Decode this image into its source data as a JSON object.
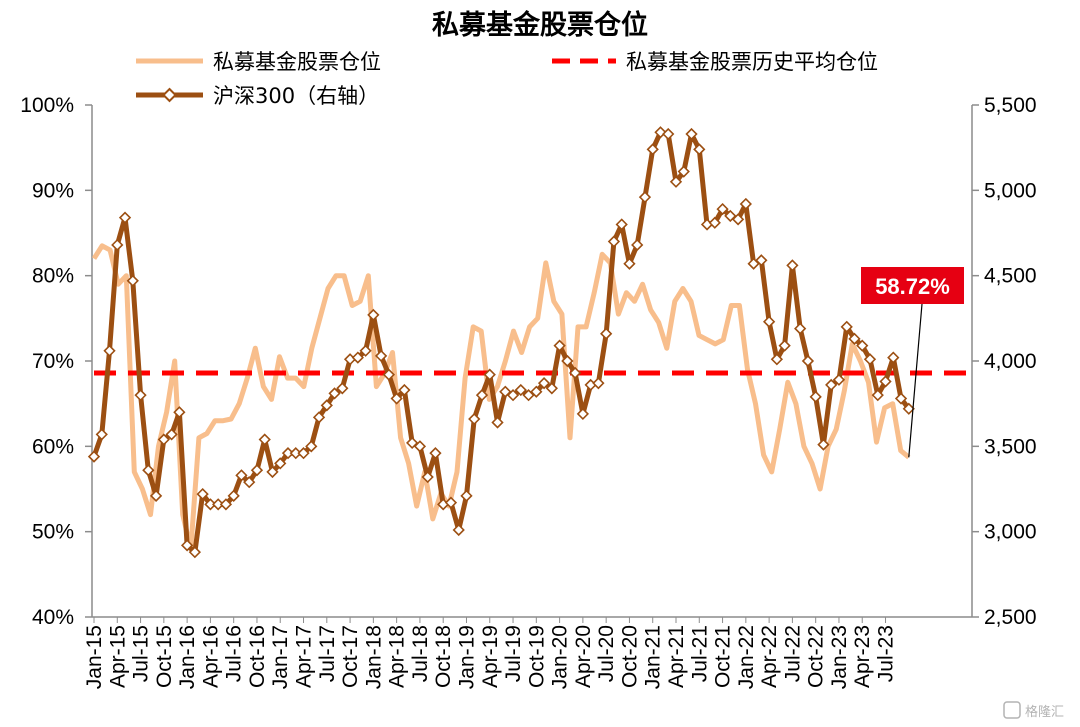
{
  "chart_data": {
    "type": "line",
    "title": "私募基金股票仓位",
    "legend": {
      "placement": "top",
      "items": [
        "私募基金股票仓位",
        "私募基金股票历史平均仓位",
        "沪深300（右轴）"
      ]
    },
    "x_tick_labels": [
      "Jan-15",
      "Apr-15",
      "Jul-15",
      "Oct-15",
      "Jan-16",
      "Apr-16",
      "Jul-16",
      "Oct-16",
      "Jan-17",
      "Apr-17",
      "Jul-17",
      "Oct-17",
      "Jan-18",
      "Apr-18",
      "Jul-18",
      "Oct-18",
      "Jan-19",
      "Apr-19",
      "Jul-19",
      "Oct-19",
      "Jan-20",
      "Apr-20",
      "Jul-20",
      "Oct-20",
      "Jan-21",
      "Apr-21",
      "Jul-21",
      "Oct-21",
      "Jan-22",
      "Apr-22",
      "Jul-22",
      "Oct-22",
      "Jan-23",
      "Apr-23",
      "Jul-23"
    ],
    "y_left": {
      "ticks": [
        "40%",
        "50%",
        "60%",
        "70%",
        "80%",
        "90%",
        "100%"
      ],
      "range": [
        40,
        100
      ],
      "unit": "%"
    },
    "y_right": {
      "ticks": [
        "2,500",
        "3,000",
        "3,500",
        "4,000",
        "4,500",
        "5,000",
        "5,500"
      ],
      "range": [
        2500,
        5500
      ]
    },
    "series": [
      {
        "name": "私募基金股票仓位",
        "axis": "left",
        "color": "#F8BE8C",
        "style": "solid",
        "values": [
          82,
          83.5,
          83,
          79,
          80,
          57,
          55,
          52,
          60,
          64,
          70,
          52,
          48,
          61,
          61.5,
          63,
          63,
          63.2,
          65,
          68,
          71.5,
          67,
          65.5,
          70.5,
          68,
          68,
          67,
          71.5,
          75,
          78.5,
          80,
          80,
          76.5,
          77,
          80,
          67,
          68.5,
          71,
          61,
          58,
          53,
          57,
          51.5,
          54.5,
          53,
          57,
          68,
          74,
          73.5,
          65.5,
          67,
          70,
          73.5,
          71,
          74,
          75,
          81.5,
          77,
          75.5,
          61,
          74,
          74,
          78,
          82.5,
          81.5,
          75.5,
          78,
          77,
          79,
          76,
          74.5,
          71.5,
          77,
          78.5,
          77,
          73,
          72.5,
          72,
          72.5,
          76.5,
          76.5,
          69,
          65,
          59,
          57,
          62,
          67.5,
          65,
          60,
          58,
          55,
          60,
          62,
          66.5,
          72,
          70,
          67.5,
          60.5,
          64.5,
          65,
          59.5,
          58.72
        ]
      },
      {
        "name": "私募基金股票历史平均仓位",
        "axis": "left",
        "color": "#FF0000",
        "style": "dashed",
        "values": [
          68.6
        ]
      },
      {
        "name": "沪深300（右轴）",
        "axis": "right",
        "color": "#9C4F12",
        "style": "solid-with-diamond-markers",
        "values": [
          3440,
          3570,
          4060,
          4680,
          4840,
          4470,
          3800,
          3360,
          3210,
          3540,
          3570,
          3700,
          2920,
          2880,
          3220,
          3160,
          3160,
          3160,
          3210,
          3330,
          3290,
          3360,
          3540,
          3350,
          3400,
          3460,
          3460,
          3460,
          3500,
          3670,
          3740,
          3810,
          3840,
          4010,
          4020,
          4060,
          4270,
          4030,
          3920,
          3780,
          3830,
          3520,
          3500,
          3320,
          3460,
          3160,
          3170,
          3010,
          3210,
          3660,
          3800,
          3920,
          3640,
          3820,
          3800,
          3830,
          3800,
          3820,
          3870,
          3840,
          4090,
          4000,
          3930,
          3690,
          3860,
          3870,
          4160,
          4700,
          4800,
          4570,
          4680,
          4960,
          5240,
          5340,
          5330,
          5050,
          5110,
          5330,
          5240,
          4800,
          4810,
          4890,
          4850,
          4830,
          4920,
          4570,
          4590,
          4230,
          4010,
          4090,
          4560,
          4190,
          4000,
          3790,
          3510,
          3860,
          3890,
          4200,
          4130,
          4090,
          4010,
          3800,
          3880,
          4020,
          3780,
          3720
        ]
      }
    ],
    "annotations": [
      {
        "text": "58.72%",
        "background": "#E60012",
        "points_to": "私募基金股票仓位 last value"
      }
    ],
    "grid": false
  },
  "watermark": "格隆汇",
  "watermark_icon": "gelonghui-logo-icon"
}
